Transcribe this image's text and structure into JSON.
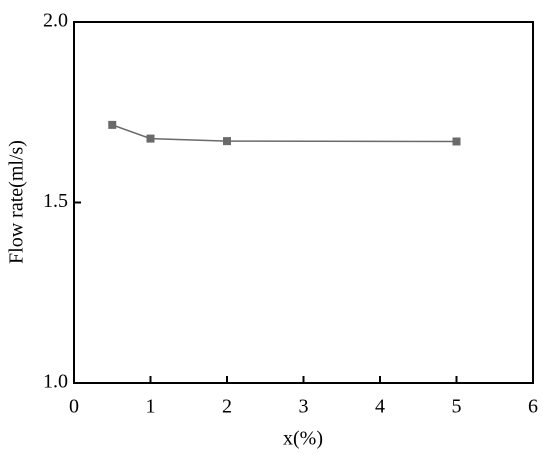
{
  "chart_data": {
    "type": "line",
    "xlabel": "x(%)",
    "ylabel": "Flow rate(ml/s)",
    "x": [
      0.5,
      1,
      2,
      5
    ],
    "values": [
      1.715,
      1.677,
      1.67,
      1.669
    ],
    "color": "#6a6a6a",
    "xlim": [
      0,
      6
    ],
    "xticks": [
      0,
      1,
      2,
      3,
      4,
      5,
      6
    ],
    "ylim": [
      1.0,
      2.0
    ],
    "yticks": [
      {
        "value": 1.0,
        "label": "1.0"
      },
      1.5,
      {
        "value": 2.0,
        "label": "2.0"
      }
    ],
    "grid": false
  }
}
